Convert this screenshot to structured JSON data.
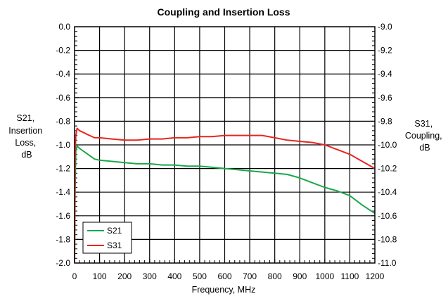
{
  "chart_data": {
    "type": "line",
    "title": "Coupling and Insertion Loss",
    "xlabel": "Frequency, MHz",
    "ylabel_left": [
      "S21,",
      "Insertion",
      "Loss,",
      "dB"
    ],
    "ylabel_right": [
      "S31,",
      "Coupling,",
      "dB"
    ],
    "xlim": [
      0,
      1200
    ],
    "ylim_left": [
      -2.0,
      0.0
    ],
    "ylim_right": [
      -11.0,
      -9.0
    ],
    "x_ticks": [
      "0",
      "100",
      "200",
      "300",
      "400",
      "500",
      "600",
      "700",
      "800",
      "900",
      "1000",
      "1100",
      "1200"
    ],
    "y_left_ticks": [
      "0.0",
      "-0.2",
      "-0.4",
      "-0.6",
      "-0.8",
      "-1.0",
      "-1.2",
      "-1.4",
      "-1.6",
      "-1.8",
      "-2.0"
    ],
    "y_right_ticks": [
      "-9.0",
      "-9.2",
      "-9.4",
      "-9.6",
      "-9.8",
      "-10.0",
      "-10.2",
      "-10.4",
      "-10.6",
      "-10.8",
      "-11.0"
    ],
    "grid": true,
    "legend_position": "bottom-left",
    "series": [
      {
        "name": "S21",
        "axis": "left",
        "color": "#1aa84a",
        "x": [
          0,
          2,
          5,
          10,
          20,
          40,
          60,
          80,
          100,
          150,
          200,
          250,
          300,
          350,
          400,
          450,
          500,
          550,
          600,
          650,
          700,
          750,
          800,
          850,
          900,
          950,
          1000,
          1050,
          1100,
          1150,
          1200
        ],
        "y": [
          -2.0,
          -1.4,
          -1.05,
          -1.01,
          -1.03,
          -1.06,
          -1.09,
          -1.12,
          -1.13,
          -1.14,
          -1.15,
          -1.16,
          -1.16,
          -1.17,
          -1.17,
          -1.18,
          -1.18,
          -1.19,
          -1.2,
          -1.21,
          -1.22,
          -1.23,
          -1.24,
          -1.25,
          -1.28,
          -1.32,
          -1.36,
          -1.39,
          -1.43,
          -1.51,
          -1.58
        ]
      },
      {
        "name": "S31",
        "axis": "right",
        "color": "#e8251f",
        "x": [
          0,
          2,
          5,
          10,
          20,
          40,
          60,
          80,
          100,
          150,
          200,
          250,
          300,
          350,
          400,
          450,
          500,
          550,
          600,
          650,
          700,
          750,
          800,
          850,
          900,
          950,
          1000,
          1050,
          1100,
          1150,
          1200
        ],
        "y": [
          -11.0,
          -10.1,
          -9.92,
          -9.86,
          -9.88,
          -9.9,
          -9.92,
          -9.94,
          -9.94,
          -9.95,
          -9.96,
          -9.96,
          -9.95,
          -9.95,
          -9.94,
          -9.94,
          -9.93,
          -9.93,
          -9.92,
          -9.92,
          -9.92,
          -9.92,
          -9.94,
          -9.96,
          -9.97,
          -9.98,
          -10.0,
          -10.04,
          -10.08,
          -10.14,
          -10.2
        ]
      }
    ]
  }
}
